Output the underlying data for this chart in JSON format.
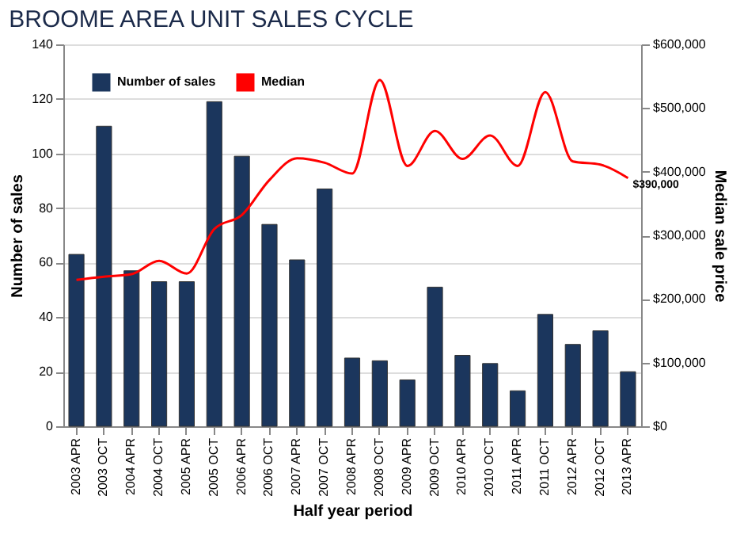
{
  "chart_data": {
    "type": "bar",
    "title": "BROOME AREA UNIT SALES CYCLE",
    "xlabel": "Half year period",
    "ylabel": "Number of sales",
    "y2label": "Median sale price",
    "categories": [
      "2003 APR",
      "2003 OCT",
      "2004 APR",
      "2004 OCT",
      "2005 APR",
      "2005 OCT",
      "2006 APR",
      "2006 OCT",
      "2007 APR",
      "2007 OCT",
      "2008 APR",
      "2008 OCT",
      "2009 APR",
      "2009 OCT",
      "2010 APR",
      "2010 OCT",
      "2011 APR",
      "2011 OCT",
      "2012 APR",
      "2012 OCT",
      "2013 APR"
    ],
    "series": [
      {
        "name": "Number of sales",
        "color": "#1b365d",
        "values": [
          63,
          110,
          57,
          53,
          53,
          119,
          99,
          74,
          61,
          87,
          25,
          24,
          17,
          51,
          26,
          23,
          13,
          41,
          30,
          35,
          20
        ]
      },
      {
        "name": "Median",
        "type": "line",
        "axis": "y2",
        "color": "#ff0000",
        "values": [
          230000,
          235000,
          239000,
          260000,
          240000,
          310000,
          332000,
          387000,
          421000,
          414000,
          397000,
          544000,
          409000,
          464000,
          420000,
          457000,
          409000,
          525000,
          416000,
          411000,
          390000
        ],
        "value_labels": [
          null,
          null,
          null,
          null,
          null,
          null,
          null,
          null,
          null,
          null,
          null,
          null,
          null,
          null,
          null,
          null,
          null,
          null,
          null,
          null,
          "$390,000"
        ]
      }
    ],
    "ylim": [
      0,
      140
    ],
    "yticks": [
      0,
      20,
      40,
      60,
      80,
      100,
      120,
      140
    ],
    "y2lim": [
      0,
      600000
    ],
    "y2ticks": [
      {
        "value": 0,
        "label": "$0"
      },
      {
        "value": 100000,
        "label": "$100,000"
      },
      {
        "value": 200000,
        "label": "$200,000"
      },
      {
        "value": 300000,
        "label": "$300,000"
      },
      {
        "value": 400000,
        "label": "$400,000"
      },
      {
        "value": 500000,
        "label": "$500,000"
      },
      {
        "value": 600000,
        "label": "$600,000"
      }
    ],
    "grid": "y",
    "legend": "top left",
    "marker": "none",
    "line_style": "solid"
  }
}
